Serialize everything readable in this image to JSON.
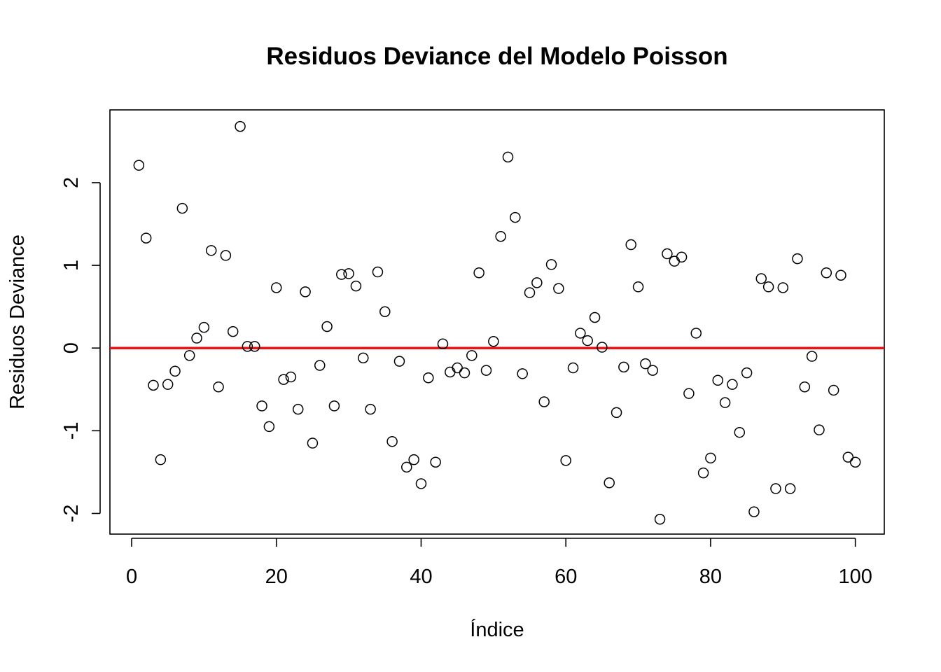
{
  "chart_data": {
    "type": "scatter",
    "title": "Residuos Deviance del Modelo Poisson",
    "xlabel": "Índice",
    "ylabel": "Residuos Deviance",
    "xlim": [
      -3,
      104
    ],
    "ylim": [
      -2.25,
      2.88
    ],
    "xticks": [
      0,
      20,
      40,
      60,
      80,
      100
    ],
    "yticks": [
      -2,
      -1,
      0,
      1,
      2
    ],
    "xtick_labels": [
      "0",
      "20",
      "40",
      "60",
      "80",
      "100"
    ],
    "ytick_labels": [
      "-2",
      "-1",
      "0",
      "1",
      "2"
    ],
    "reference_line": {
      "y": 0,
      "color": "#ee1111"
    },
    "point_color": "#000000",
    "grid": false,
    "series": [
      {
        "x": [
          1,
          2,
          3,
          4,
          5,
          6,
          7,
          8,
          9,
          10,
          11,
          12,
          13,
          14,
          15,
          16,
          17,
          18,
          19,
          20,
          21,
          22,
          23,
          24,
          25,
          26,
          27,
          28,
          29,
          30,
          31,
          32,
          33,
          34,
          35,
          36,
          37,
          38,
          39,
          40,
          41,
          42,
          43,
          44,
          45,
          46,
          47,
          48,
          49,
          50,
          51,
          52,
          53,
          54,
          55,
          56,
          57,
          58,
          59,
          60,
          61,
          62,
          63,
          64,
          65,
          66,
          67,
          68,
          69,
          70,
          71,
          72,
          73,
          74,
          75,
          76,
          77,
          78,
          79,
          80,
          81,
          82,
          83,
          84,
          85,
          86,
          87,
          88,
          89,
          90,
          91,
          92,
          93,
          94,
          95,
          96,
          97,
          98,
          99,
          100
        ],
        "y": [
          2.21,
          1.33,
          -0.45,
          -1.35,
          -0.44,
          -0.28,
          1.69,
          -0.09,
          0.12,
          0.25,
          1.18,
          -0.47,
          1.12,
          0.2,
          2.68,
          0.02,
          0.02,
          -0.7,
          -0.95,
          0.73,
          -0.38,
          -0.35,
          -0.74,
          0.68,
          -1.15,
          -0.21,
          0.26,
          -0.7,
          0.89,
          0.9,
          0.75,
          -0.12,
          -0.74,
          0.92,
          0.44,
          -1.13,
          -0.16,
          -1.44,
          -1.35,
          -1.64,
          -0.36,
          -1.38,
          0.05,
          -0.29,
          -0.24,
          -0.3,
          -0.09,
          0.91,
          -0.27,
          0.08,
          1.35,
          2.31,
          1.58,
          -0.31,
          0.67,
          0.79,
          -0.65,
          1.01,
          0.72,
          -1.36,
          -0.24,
          0.18,
          0.09,
          0.37,
          0.01,
          -1.63,
          -0.78,
          -0.23,
          1.25,
          0.74,
          -0.19,
          -0.27,
          -2.07,
          1.14,
          1.05,
          1.1,
          -0.55,
          0.18,
          -1.51,
          -1.33,
          -0.39,
          -0.66,
          -0.44,
          -1.02,
          -0.3,
          -1.98,
          0.84,
          0.74,
          -1.7,
          0.73,
          -1.7,
          1.08,
          -0.47,
          -0.1,
          -0.99,
          0.91,
          -0.51,
          0.88,
          -1.32,
          -1.38
        ]
      }
    ]
  }
}
